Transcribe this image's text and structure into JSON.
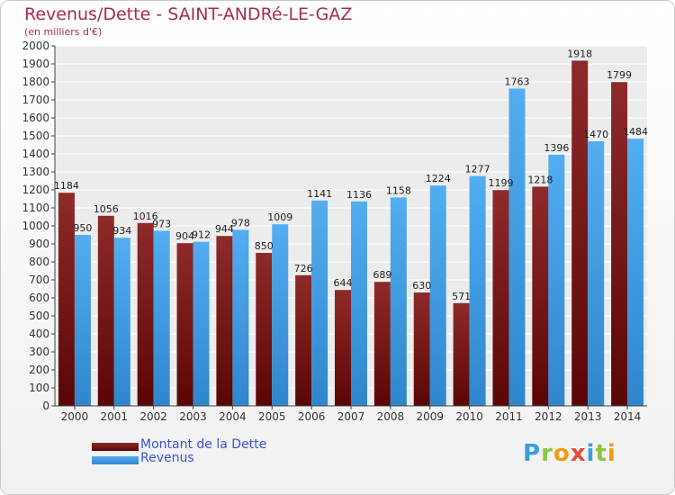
{
  "title": "Revenus/Dette - SAINT-ANDRé-LE-GAZ",
  "subtitle": "(en milliers d'€)",
  "legend": [
    {
      "label": "Montant de la Dette",
      "color": "#7a1616"
    },
    {
      "label": "Revenus",
      "color": "#3f9ce0"
    }
  ],
  "logo": {
    "text": "Proxiti",
    "colors": [
      "#3aa0d8",
      "#8cc63f",
      "#f39c12",
      "#e74c3c",
      "#3aa0d8",
      "#8cc63f",
      "#f39c12"
    ]
  },
  "chart_data": {
    "type": "bar",
    "title": "Revenus/Dette - SAINT-ANDRé-LE-GAZ",
    "subtitle": "(en milliers d'€)",
    "categories": [
      "2000",
      "2001",
      "2002",
      "2003",
      "2004",
      "2005",
      "2006",
      "2007",
      "2008",
      "2009",
      "2010",
      "2011",
      "2012",
      "2013",
      "2014"
    ],
    "series": [
      {
        "name": "Montant de la Dette",
        "color": "#7a1616",
        "values": [
          1184,
          1056,
          1016,
          904,
          944,
          850,
          726,
          644,
          689,
          630,
          571,
          1199,
          1218,
          1918,
          1799
        ]
      },
      {
        "name": "Revenus",
        "color": "#3f9ce0",
        "values": [
          950,
          934,
          973,
          912,
          978,
          1009,
          1141,
          1136,
          1158,
          1224,
          1277,
          1763,
          1396,
          1470,
          1484
        ]
      }
    ],
    "ylim": [
      0,
      2000
    ],
    "ytick_step": 100,
    "grid": true,
    "legend_position": "bottom-left"
  }
}
